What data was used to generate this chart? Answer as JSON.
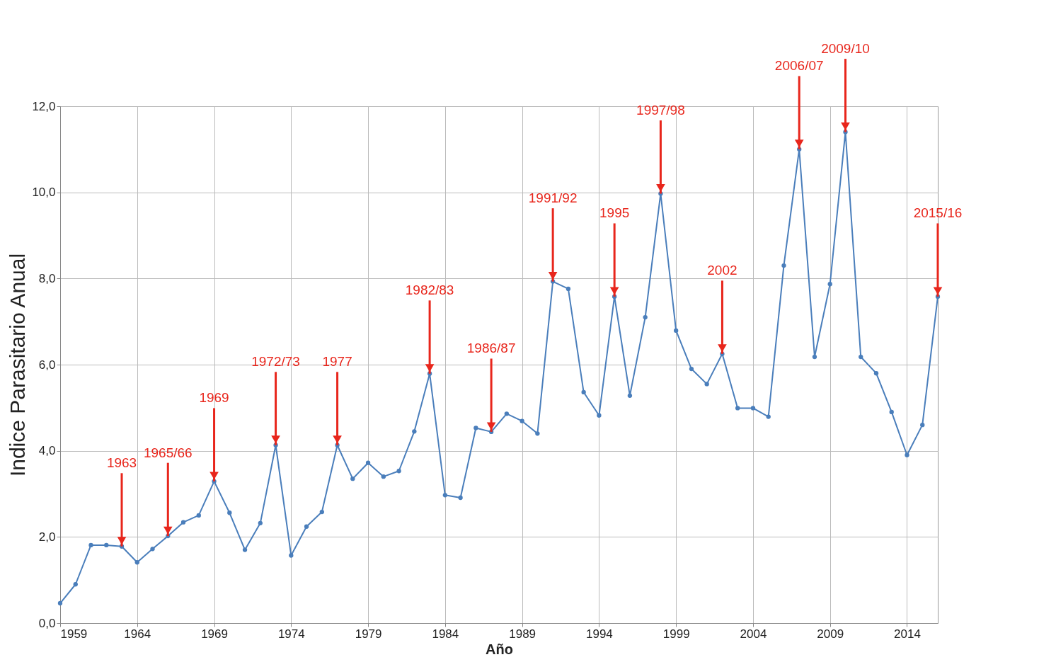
{
  "chart_data": {
    "type": "line",
    "xlabel": "Año",
    "ylabel": "Indice Parasitario Anual",
    "x": [
      1959,
      1960,
      1961,
      1962,
      1963,
      1964,
      1965,
      1966,
      1967,
      1968,
      1969,
      1970,
      1971,
      1972,
      1973,
      1974,
      1975,
      1976,
      1977,
      1978,
      1979,
      1980,
      1981,
      1982,
      1983,
      1984,
      1985,
      1986,
      1987,
      1988,
      1989,
      1990,
      1991,
      1992,
      1993,
      1994,
      1995,
      1996,
      1997,
      1998,
      1999,
      2000,
      2001,
      2002,
      2003,
      2004,
      2005,
      2006,
      2007,
      2008,
      2009,
      2010,
      2011,
      2012,
      2013,
      2014,
      2015,
      2016
    ],
    "series": [
      {
        "color": "#4a7ebb",
        "values": [
          0.46,
          0.9,
          1.81,
          1.81,
          1.78,
          1.41,
          1.72,
          2.02,
          2.34,
          2.5,
          3.29,
          2.56,
          1.7,
          2.32,
          4.13,
          1.57,
          2.24,
          2.58,
          4.13,
          3.35,
          3.72,
          3.4,
          3.53,
          4.45,
          5.79,
          2.97,
          2.91,
          4.53,
          4.44,
          4.86,
          4.69,
          4.4,
          7.93,
          7.76,
          5.36,
          4.82,
          7.58,
          5.28,
          7.1,
          9.97,
          6.79,
          5.9,
          5.55,
          6.25,
          4.99,
          4.99,
          4.79,
          8.3,
          11.0,
          6.18,
          7.87,
          11.4,
          6.18,
          5.8,
          4.9,
          3.9,
          4.6,
          7.58
        ]
      }
    ],
    "xlim": [
      1959,
      2016
    ],
    "xticks": [
      1959,
      1964,
      1969,
      1974,
      1979,
      1984,
      1989,
      1994,
      1999,
      2004,
      2009,
      2014
    ],
    "ylim": [
      0,
      12
    ],
    "yticks": [
      {
        "value": 0,
        "label": "0,0"
      },
      {
        "value": 2,
        "label": "2,0"
      },
      {
        "value": 4,
        "label": "4,0"
      },
      {
        "value": 6,
        "label": "6,0"
      },
      {
        "value": 8,
        "label": "8,0"
      },
      {
        "value": 10,
        "label": "10,0"
      },
      {
        "value": 12,
        "label": "12,0"
      }
    ],
    "grid": true,
    "marker": "circle",
    "line_style": "solid",
    "annotations": [
      {
        "text": "1963",
        "x": 1963,
        "y": 1.78
      },
      {
        "text": "1965/66",
        "x": 1966,
        "y": 2.02
      },
      {
        "text": "1969",
        "x": 1969,
        "y": 3.29
      },
      {
        "text": "1972/73",
        "x": 1973,
        "y": 4.13
      },
      {
        "text": "1977",
        "x": 1977,
        "y": 4.13
      },
      {
        "text": "1982/83",
        "x": 1983,
        "y": 5.79
      },
      {
        "text": "1986/87",
        "x": 1987,
        "y": 4.44
      },
      {
        "text": "1991/92",
        "x": 1991,
        "y": 7.93
      },
      {
        "text": "1995",
        "x": 1995,
        "y": 7.58
      },
      {
        "text": "1997/98",
        "x": 1998,
        "y": 9.97
      },
      {
        "text": "2002",
        "x": 2002,
        "y": 6.25
      },
      {
        "text": "2006/07",
        "x": 2007,
        "y": 11.0
      },
      {
        "text": "2009/10",
        "x": 2010,
        "y": 11.4
      },
      {
        "text": "2015/16",
        "x": 2016,
        "y": 7.58
      }
    ]
  }
}
